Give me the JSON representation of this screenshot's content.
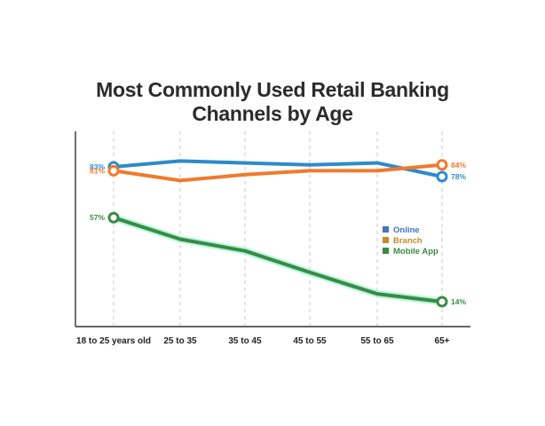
{
  "chart_data": {
    "type": "line",
    "title": "Most Commonly Used Retail Banking Channels by Age",
    "title_lines": [
      "Most Commonly Used Retail Banking",
      "Channels by Age"
    ],
    "categories": [
      "18 to 25 years old",
      "25 to 35",
      "35 to 45",
      "45 to 55",
      "55 to 65",
      "65+"
    ],
    "ylim": [
      0,
      100
    ],
    "grid": "vertical dashed",
    "legend_position": "right",
    "series": [
      {
        "name": "Online",
        "color": "#2e8bc9",
        "legend_color": "#4472c4",
        "values": [
          83,
          86,
          85,
          84,
          85,
          78
        ],
        "labels": [
          "83%",
          null,
          null,
          null,
          null,
          "78%"
        ]
      },
      {
        "name": "Branch",
        "color": "#f07a2c",
        "legend_color": "#c88a2a",
        "values": [
          81,
          76,
          79,
          81,
          81,
          84
        ],
        "labels": [
          "81%",
          null,
          null,
          null,
          null,
          "84%"
        ]
      },
      {
        "name": "Mobile App",
        "color": "#3a8a46",
        "legend_color": "#3a8a46",
        "values": [
          57,
          46,
          40,
          29,
          18,
          14
        ],
        "labels": [
          "57%",
          null,
          null,
          null,
          null,
          "14%"
        ]
      }
    ]
  }
}
